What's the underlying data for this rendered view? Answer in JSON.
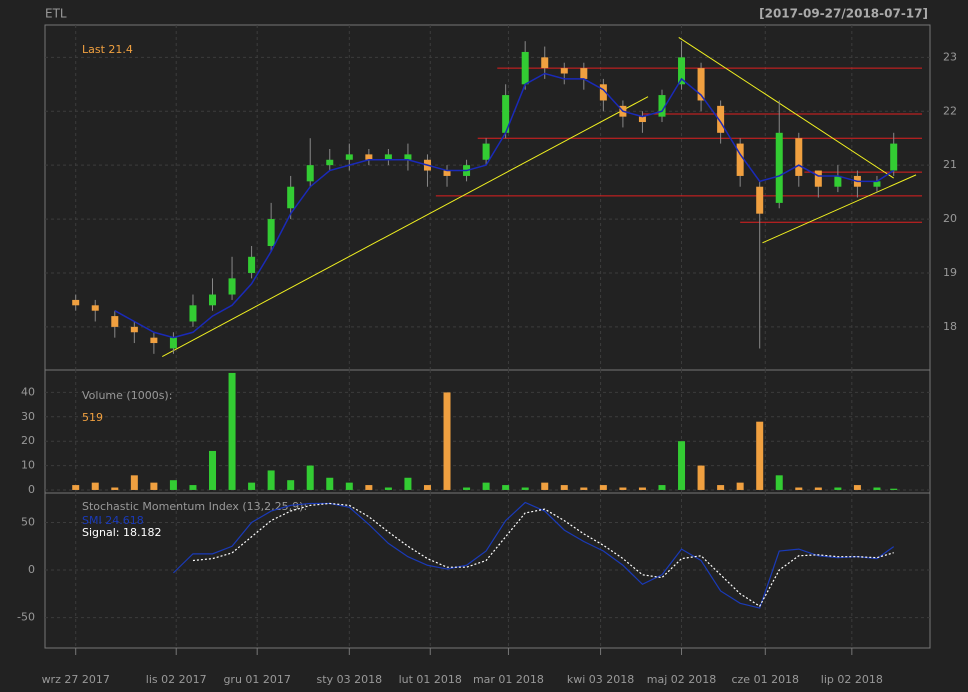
{
  "chart_data": [
    {
      "type": "candlestick",
      "title": "ETL",
      "subtitle": "[2017-09-27/2018-07-17]",
      "last_label": "Last 21.4",
      "xlim": [
        "2017-09-16",
        "2018-07-30"
      ],
      "ylim": [
        17.2,
        23.6
      ],
      "yticks": [
        18,
        19,
        20,
        21,
        22,
        23
      ],
      "grid": true,
      "up_color": "#33cc33",
      "down_color": "#f0a040",
      "x": [
        "2017-09-27",
        "2017-10-04",
        "2017-10-11",
        "2017-10-18",
        "2017-10-25",
        "2017-11-01",
        "2017-11-08",
        "2017-11-15",
        "2017-11-22",
        "2017-11-29",
        "2017-12-06",
        "2017-12-13",
        "2017-12-20",
        "2017-12-27",
        "2018-01-03",
        "2018-01-10",
        "2018-01-17",
        "2018-01-24",
        "2018-01-31",
        "2018-02-07",
        "2018-02-14",
        "2018-02-21",
        "2018-02-28",
        "2018-03-07",
        "2018-03-14",
        "2018-03-21",
        "2018-03-28",
        "2018-04-04",
        "2018-04-11",
        "2018-04-18",
        "2018-04-25",
        "2018-05-02",
        "2018-05-09",
        "2018-05-16",
        "2018-05-23",
        "2018-05-30",
        "2018-06-06",
        "2018-06-13",
        "2018-06-20",
        "2018-06-27",
        "2018-07-04",
        "2018-07-11",
        "2018-07-17"
      ],
      "open": [
        18.5,
        18.4,
        18.2,
        18.0,
        17.8,
        17.6,
        18.1,
        18.4,
        18.6,
        19.0,
        19.5,
        20.2,
        20.7,
        21.0,
        21.1,
        21.2,
        21.1,
        21.1,
        21.1,
        20.9,
        20.8,
        21.1,
        21.6,
        22.5,
        23.0,
        22.8,
        22.8,
        22.5,
        22.1,
        21.9,
        21.9,
        22.5,
        22.8,
        22.1,
        21.4,
        20.6,
        20.3,
        21.5,
        20.9,
        20.6,
        20.8,
        20.6,
        20.9
      ],
      "high": [
        18.6,
        18.5,
        18.3,
        18.1,
        17.9,
        17.9,
        18.6,
        18.9,
        19.3,
        19.5,
        20.3,
        20.8,
        21.5,
        21.3,
        21.4,
        21.3,
        21.3,
        21.4,
        21.2,
        21.0,
        21.1,
        21.5,
        22.5,
        23.3,
        23.2,
        22.9,
        22.9,
        22.6,
        22.2,
        22.0,
        22.4,
        23.3,
        22.9,
        22.2,
        21.5,
        20.7,
        22.2,
        21.6,
        20.9,
        21.0,
        20.9,
        20.8,
        21.6
      ],
      "low": [
        18.3,
        18.1,
        17.8,
        17.7,
        17.5,
        17.5,
        18.0,
        18.3,
        18.5,
        18.9,
        19.4,
        20.0,
        20.6,
        20.9,
        20.9,
        21.0,
        21.0,
        20.9,
        20.6,
        20.6,
        20.7,
        21.0,
        21.5,
        22.4,
        22.6,
        22.5,
        22.4,
        22.0,
        21.7,
        21.6,
        21.8,
        22.4,
        22.0,
        21.4,
        20.6,
        17.6,
        20.2,
        20.6,
        20.4,
        20.5,
        20.4,
        20.5,
        20.8
      ],
      "close": [
        18.4,
        18.3,
        18.0,
        17.9,
        17.7,
        17.8,
        18.4,
        18.6,
        18.9,
        19.3,
        20.0,
        20.6,
        21.0,
        21.1,
        21.2,
        21.1,
        21.2,
        21.2,
        20.9,
        20.8,
        21.0,
        21.4,
        22.3,
        23.1,
        22.8,
        22.7,
        22.6,
        22.2,
        21.9,
        21.8,
        22.3,
        23.0,
        22.2,
        21.6,
        20.8,
        20.1,
        21.6,
        20.8,
        20.6,
        20.8,
        20.6,
        20.7,
        21.4
      ],
      "sma": {
        "color": "#1a2ab8",
        "values": [
          null,
          null,
          18.3,
          18.1,
          17.9,
          17.8,
          17.9,
          18.2,
          18.4,
          18.8,
          19.4,
          20.1,
          20.6,
          20.9,
          21.0,
          21.1,
          21.1,
          21.1,
          21.0,
          20.9,
          20.9,
          21.0,
          21.6,
          22.5,
          22.7,
          22.6,
          22.6,
          22.4,
          22.0,
          21.9,
          22.0,
          22.6,
          22.3,
          21.8,
          21.2,
          20.7,
          20.8,
          21.0,
          20.8,
          20.8,
          20.7,
          20.7,
          20.9
        ]
      },
      "levels": {
        "color": "#e02020",
        "from": [
          "2018-02-25",
          "2018-04-18",
          "2018-02-18",
          "2018-06-15",
          "2018-02-03",
          "2018-05-23"
        ],
        "values": [
          22.8,
          21.95,
          21.5,
          20.87,
          20.43,
          19.94
        ]
      },
      "trendlines": {
        "color": "#f0f020",
        "x": [
          [
            "2017-10-28",
            "2018-04-20"
          ],
          [
            "2018-05-01",
            "2018-07-17"
          ],
          [
            "2018-05-31",
            "2018-07-25"
          ]
        ],
        "y": [
          [
            17.45,
            22.27
          ],
          [
            23.37,
            20.76
          ],
          [
            19.56,
            20.82
          ]
        ]
      }
    },
    {
      "type": "volume",
      "title": "Volume (1000s):",
      "last_label": "519",
      "xlim": [
        "2017-09-16",
        "2018-07-30"
      ],
      "ylim": [
        -1.25,
        49.2
      ],
      "yticks": [
        0,
        10,
        20,
        30,
        40
      ],
      "grid": true,
      "x": [
        "2017-09-27",
        "2017-10-04",
        "2017-10-11",
        "2017-10-18",
        "2017-10-25",
        "2017-11-01",
        "2017-11-08",
        "2017-11-15",
        "2017-11-22",
        "2017-11-29",
        "2017-12-06",
        "2017-12-13",
        "2017-12-20",
        "2017-12-27",
        "2018-01-03",
        "2018-01-10",
        "2018-01-17",
        "2018-01-24",
        "2018-01-31",
        "2018-02-07",
        "2018-02-14",
        "2018-02-21",
        "2018-02-28",
        "2018-03-07",
        "2018-03-14",
        "2018-03-21",
        "2018-03-28",
        "2018-04-04",
        "2018-04-11",
        "2018-04-18",
        "2018-04-25",
        "2018-05-02",
        "2018-05-09",
        "2018-05-16",
        "2018-05-23",
        "2018-05-30",
        "2018-06-06",
        "2018-06-13",
        "2018-06-20",
        "2018-06-27",
        "2018-07-04",
        "2018-07-11",
        "2018-07-17"
      ],
      "values": [
        2,
        3,
        1,
        6,
        3,
        4,
        2,
        16,
        48,
        3,
        8,
        4,
        10,
        5,
        3,
        2,
        1,
        5,
        2,
        40,
        1,
        3,
        2,
        1,
        3,
        2,
        1,
        2,
        1,
        1,
        2,
        20,
        10,
        2,
        3,
        28,
        6,
        1,
        1,
        1,
        2,
        1,
        0.519
      ]
    },
    {
      "type": "line",
      "title": "Stochastic Momentum Index (13,2,25,9):",
      "xlim": [
        "2017-09-16",
        "2018-07-30"
      ],
      "ylim": [
        -82,
        81
      ],
      "yticks": [
        -50,
        0,
        50
      ],
      "grid": true,
      "xticks": [
        {
          "value": "2017-09-27",
          "label": "wrz 27 2017"
        },
        {
          "value": "2017-11-02",
          "label": "lis 02 2017"
        },
        {
          "value": "2017-12-01",
          "label": "gru 01 2017"
        },
        {
          "value": "2018-01-03",
          "label": "sty 03 2018"
        },
        {
          "value": "2018-02-01",
          "label": "lut 01 2018"
        },
        {
          "value": "2018-03-01",
          "label": "mar 01 2018"
        },
        {
          "value": "2018-04-03",
          "label": "kwi 03 2018"
        },
        {
          "value": "2018-05-02",
          "label": "maj 02 2018"
        },
        {
          "value": "2018-06-01",
          "label": "cze 01 2018"
        },
        {
          "value": "2018-07-02",
          "label": "lip 02 2018"
        }
      ],
      "x": [
        "2017-09-27",
        "2017-10-04",
        "2017-10-11",
        "2017-10-18",
        "2017-10-25",
        "2017-11-01",
        "2017-11-08",
        "2017-11-15",
        "2017-11-22",
        "2017-11-29",
        "2017-12-06",
        "2017-12-13",
        "2017-12-20",
        "2017-12-27",
        "2018-01-03",
        "2018-01-10",
        "2018-01-17",
        "2018-01-24",
        "2018-01-31",
        "2018-02-07",
        "2018-02-14",
        "2018-02-21",
        "2018-02-28",
        "2018-03-07",
        "2018-03-14",
        "2018-03-21",
        "2018-03-28",
        "2018-04-04",
        "2018-04-11",
        "2018-04-18",
        "2018-04-25",
        "2018-05-02",
        "2018-05-09",
        "2018-05-16",
        "2018-05-23",
        "2018-05-30",
        "2018-06-06",
        "2018-06-13",
        "2018-06-20",
        "2018-06-27",
        "2018-07-04",
        "2018-07-11",
        "2018-07-17"
      ],
      "series": [
        {
          "name": "SMI 24.618",
          "color": "#1a3ab8",
          "dashed": false,
          "values": [
            null,
            null,
            null,
            null,
            null,
            -3,
            17,
            17,
            25,
            50,
            62,
            68,
            70,
            70,
            66,
            48,
            28,
            14,
            5,
            1,
            5,
            20,
            52,
            71,
            62,
            42,
            30,
            20,
            5,
            -15,
            -5,
            22,
            10,
            -22,
            -35,
            -40,
            20,
            22,
            15,
            13,
            14,
            12,
            24.618
          ]
        },
        {
          "name": "Signal: 18.182",
          "color": "#ffffff",
          "dashed": true,
          "values": [
            null,
            null,
            null,
            null,
            null,
            null,
            10,
            12,
            18,
            35,
            52,
            62,
            68,
            70,
            68,
            56,
            40,
            25,
            12,
            3,
            3,
            10,
            35,
            60,
            64,
            52,
            38,
            26,
            12,
            -5,
            -8,
            12,
            15,
            -5,
            -25,
            -38,
            0,
            15,
            16,
            14,
            14,
            13,
            18.182
          ]
        }
      ]
    }
  ]
}
